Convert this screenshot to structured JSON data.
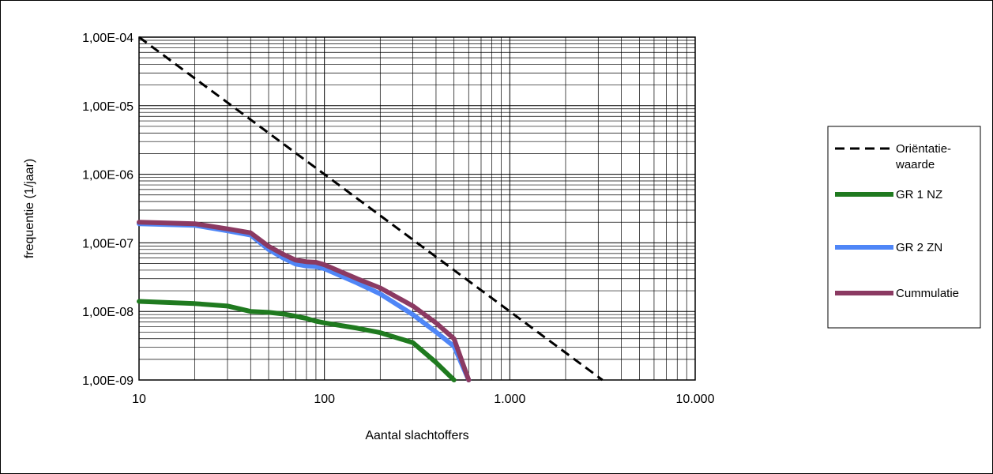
{
  "chart_data": {
    "type": "line",
    "title": "",
    "xlabel": "Aantal slachtoffers",
    "ylabel": "frequentie (1/jaar)",
    "x_scale": "log",
    "y_scale": "log",
    "xlim": [
      10,
      10000
    ],
    "ylim": [
      1e-09,
      0.0001
    ],
    "x_ticks": [
      {
        "value": 10,
        "label": "10"
      },
      {
        "value": 100,
        "label": "100"
      },
      {
        "value": 1000,
        "label": "1.000"
      },
      {
        "value": 10000,
        "label": "10.000"
      }
    ],
    "y_ticks": [
      {
        "value": 0.0001,
        "label": "1,00E-04"
      },
      {
        "value": 1e-05,
        "label": "1,00E-05"
      },
      {
        "value": 1e-06,
        "label": "1,00E-06"
      },
      {
        "value": 1e-07,
        "label": "1,00E-07"
      },
      {
        "value": 1e-08,
        "label": "1,00E-08"
      },
      {
        "value": 1e-09,
        "label": "1,00E-09"
      }
    ],
    "grid": true,
    "legend_position": "right",
    "series": [
      {
        "name": "Oriëntatie-waarde",
        "legend_lines": [
          "Oriëntatie-",
          "waarde"
        ],
        "color": "#000000",
        "dashed": true,
        "x": [
          10,
          3162
        ],
        "y": [
          0.0001,
          1e-09
        ]
      },
      {
        "name": "GR 1 NZ",
        "legend_lines": [
          "GR 1 NZ"
        ],
        "color": "#1f7a1f",
        "dashed": false,
        "x": [
          10,
          20,
          30,
          40,
          50,
          60,
          70,
          80,
          90,
          100,
          150,
          200,
          300,
          400,
          500
        ],
        "y": [
          1.4e-08,
          1.3e-08,
          1.2e-08,
          1e-08,
          9.7e-09,
          9.2e-09,
          8.5e-09,
          7.9e-09,
          7.2e-09,
          6.8e-09,
          5.7e-09,
          4.9e-09,
          3.5e-09,
          1.8e-09,
          1e-09
        ]
      },
      {
        "name": "GR 2 ZN",
        "legend_lines": [
          "GR 2 ZN"
        ],
        "color": "#4f86f7",
        "dashed": false,
        "x": [
          10,
          20,
          30,
          40,
          50,
          60,
          70,
          80,
          90,
          100,
          150,
          200,
          300,
          400,
          500,
          600
        ],
        "y": [
          1.9e-07,
          1.8e-07,
          1.5e-07,
          1.3e-07,
          8e-08,
          6e-08,
          4.9e-08,
          4.6e-08,
          4.5e-08,
          4.2e-08,
          2.6e-08,
          1.8e-08,
          9e-09,
          5e-09,
          3.1e-09,
          1e-09
        ]
      },
      {
        "name": "Cummulatie",
        "legend_lines": [
          "Cummulatie"
        ],
        "color": "#8b3a62",
        "dashed": false,
        "x": [
          10,
          20,
          30,
          40,
          50,
          60,
          70,
          80,
          90,
          100,
          150,
          200,
          300,
          400,
          500,
          600
        ],
        "y": [
          2e-07,
          1.9e-07,
          1.6e-07,
          1.4e-07,
          8.9e-08,
          6.8e-08,
          5.6e-08,
          5.3e-08,
          5.2e-08,
          4.8e-08,
          3e-08,
          2.2e-08,
          1.2e-08,
          6.8e-09,
          4e-09,
          1e-09
        ]
      }
    ]
  }
}
